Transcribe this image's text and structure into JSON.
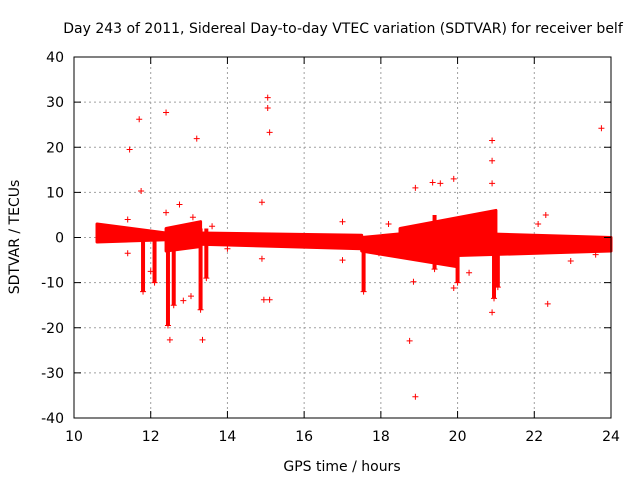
{
  "chart_data": {
    "type": "scatter",
    "title": "Day 243 of 2011, Sidereal Day-to-day VTEC variation (SDTVAR) for receiver belf",
    "xlabel": "GPS time / hours",
    "ylabel": "SDTVAR / TECUs",
    "xlim": [
      10,
      24
    ],
    "ylim": [
      -40,
      40
    ],
    "x_ticks": [
      10,
      12,
      14,
      16,
      18,
      20,
      22,
      24
    ],
    "y_ticks": [
      -40,
      -30,
      -20,
      -10,
      0,
      10,
      20,
      30,
      40
    ],
    "x_tick_labels": [
      "10",
      "12",
      "14",
      "16",
      "18",
      "20",
      "22",
      "24"
    ],
    "y_tick_labels": [
      "-40",
      "-30",
      "-20",
      "-10",
      "0",
      "10",
      "20",
      "30",
      "40"
    ],
    "grid": true,
    "marker": "+",
    "marker_color": "#ff0000",
    "series": [
      {
        "name": "SDTVAR",
        "bands": [
          {
            "x_start": 10.6,
            "x_end": 12.4,
            "y_lo_start": -1.0,
            "y_lo_end": -0.5,
            "y_hi_start": 3.0,
            "y_hi_end": 1.0
          },
          {
            "x_start": 12.4,
            "x_end": 13.3,
            "y_lo_start": -3.0,
            "y_lo_end": -2.0,
            "y_hi_start": 2.0,
            "y_hi_end": 3.5
          },
          {
            "x_start": 13.3,
            "x_end": 17.5,
            "y_lo_start": -1.5,
            "y_lo_end": -2.5,
            "y_hi_start": 1.0,
            "y_hi_end": 0.5
          },
          {
            "x_start": 17.5,
            "x_end": 20.0,
            "y_lo_start": -3.0,
            "y_lo_end": -6.5,
            "y_hi_start": 0.0,
            "y_hi_end": 2.0
          },
          {
            "x_start": 18.5,
            "x_end": 21.0,
            "y_lo_start": -1.0,
            "y_lo_end": -1.5,
            "y_hi_start": 2.0,
            "y_hi_end": 6.0
          },
          {
            "x_start": 20.0,
            "x_end": 24.0,
            "y_lo_start": -4.0,
            "y_lo_end": -3.0,
            "y_hi_start": 1.0,
            "y_hi_end": 0.0
          }
        ],
        "spikes": [
          {
            "x": 11.8,
            "y_min": -12,
            "y_max": 0
          },
          {
            "x": 12.1,
            "y_min": -10,
            "y_max": 0
          },
          {
            "x": 12.45,
            "y_min": -19.5,
            "y_max": 0
          },
          {
            "x": 12.6,
            "y_min": -15,
            "y_max": 2
          },
          {
            "x": 13.3,
            "y_min": -16,
            "y_max": 2
          },
          {
            "x": 13.45,
            "y_min": -9,
            "y_max": 2
          },
          {
            "x": 17.55,
            "y_min": -12,
            "y_max": -2
          },
          {
            "x": 19.4,
            "y_min": -7,
            "y_max": 5
          },
          {
            "x": 20.0,
            "y_min": -10,
            "y_max": 2
          },
          {
            "x": 20.95,
            "y_min": -13.5,
            "y_max": 1
          },
          {
            "x": 21.05,
            "y_min": -11,
            "y_max": 0
          }
        ],
        "points": [
          [
            11.45,
            19.5
          ],
          [
            11.7,
            26.2
          ],
          [
            11.75,
            10.3
          ],
          [
            12.4,
            27.7
          ],
          [
            12.5,
            -22.7
          ],
          [
            12.75,
            7.3
          ],
          [
            12.4,
            5.5
          ],
          [
            13.2,
            21.9
          ],
          [
            13.35,
            -22.7
          ],
          [
            14.9,
            7.8
          ],
          [
            14.95,
            -13.8
          ],
          [
            15.05,
            31.0
          ],
          [
            15.05,
            28.7
          ],
          [
            15.1,
            23.3
          ],
          [
            15.1,
            -13.8
          ],
          [
            14.9,
            -4.7
          ],
          [
            17.0,
            3.5
          ],
          [
            17.0,
            -5.0
          ],
          [
            18.2,
            3.0
          ],
          [
            18.75,
            -22.9
          ],
          [
            18.9,
            -35.3
          ],
          [
            18.9,
            11.0
          ],
          [
            18.85,
            -9.8
          ],
          [
            19.35,
            12.2
          ],
          [
            19.55,
            12.0
          ],
          [
            19.9,
            13.0
          ],
          [
            19.9,
            -11.2
          ],
          [
            20.3,
            -7.8
          ],
          [
            20.9,
            21.5
          ],
          [
            20.9,
            17.0
          ],
          [
            20.9,
            12.0
          ],
          [
            20.9,
            -16.6
          ],
          [
            22.1,
            3.0
          ],
          [
            22.3,
            5.0
          ],
          [
            22.35,
            -14.7
          ],
          [
            22.95,
            -5.2
          ],
          [
            23.75,
            24.2
          ],
          [
            11.4,
            4.0
          ],
          [
            11.4,
            -3.5
          ],
          [
            12.0,
            -7.5
          ],
          [
            13.05,
            -13.0
          ],
          [
            12.85,
            -14.0
          ],
          [
            13.1,
            4.5
          ],
          [
            13.6,
            2.5
          ],
          [
            14.0,
            -2.5
          ],
          [
            17.95,
            -3.5
          ],
          [
            20.55,
            4.5
          ],
          [
            21.3,
            -1.5
          ],
          [
            22.7,
            -3.0
          ],
          [
            23.6,
            -3.8
          ]
        ]
      }
    ]
  }
}
